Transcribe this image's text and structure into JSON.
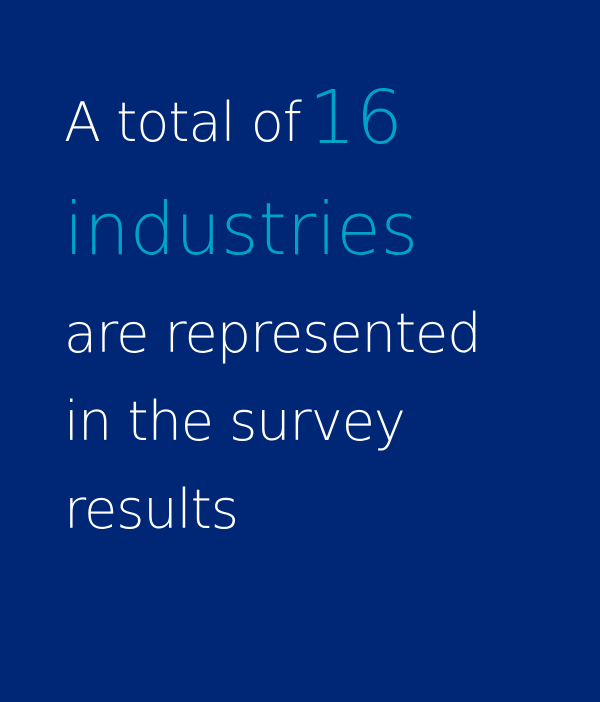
{
  "colors": {
    "background": "#002776",
    "text": "#ffffff",
    "accent": "#00a3c8"
  },
  "stat": {
    "prefix": "A total of",
    "number": "16",
    "highlight_word": "industries",
    "line3": "are represented",
    "line4": "in the survey",
    "line5": "results"
  }
}
